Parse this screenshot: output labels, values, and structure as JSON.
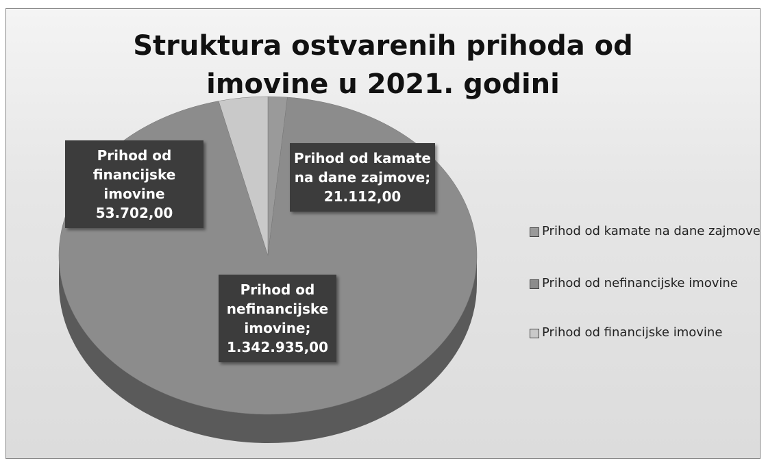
{
  "chart_data": {
    "type": "pie",
    "title": "Struktura ostvarenih prihoda od imovine u 2021. godini",
    "categories": [
      "Prihod od kamate na dane zajmove",
      "Prihod od nefinancijske imovine",
      "Prihod od financijske imovine"
    ],
    "values": [
      21112,
      1342935,
      53702
    ],
    "value_labels": [
      "Prihod od kamate na dane zajmove; 21.112,00",
      "Prihod od nefinancijske imovine; 1.342.935,00",
      "Prihod od financijske imovine 53.702,00"
    ],
    "colors": [
      "#9a9a9a",
      "#8c8c8c",
      "#c9c9c9"
    ],
    "legend": "right"
  }
}
